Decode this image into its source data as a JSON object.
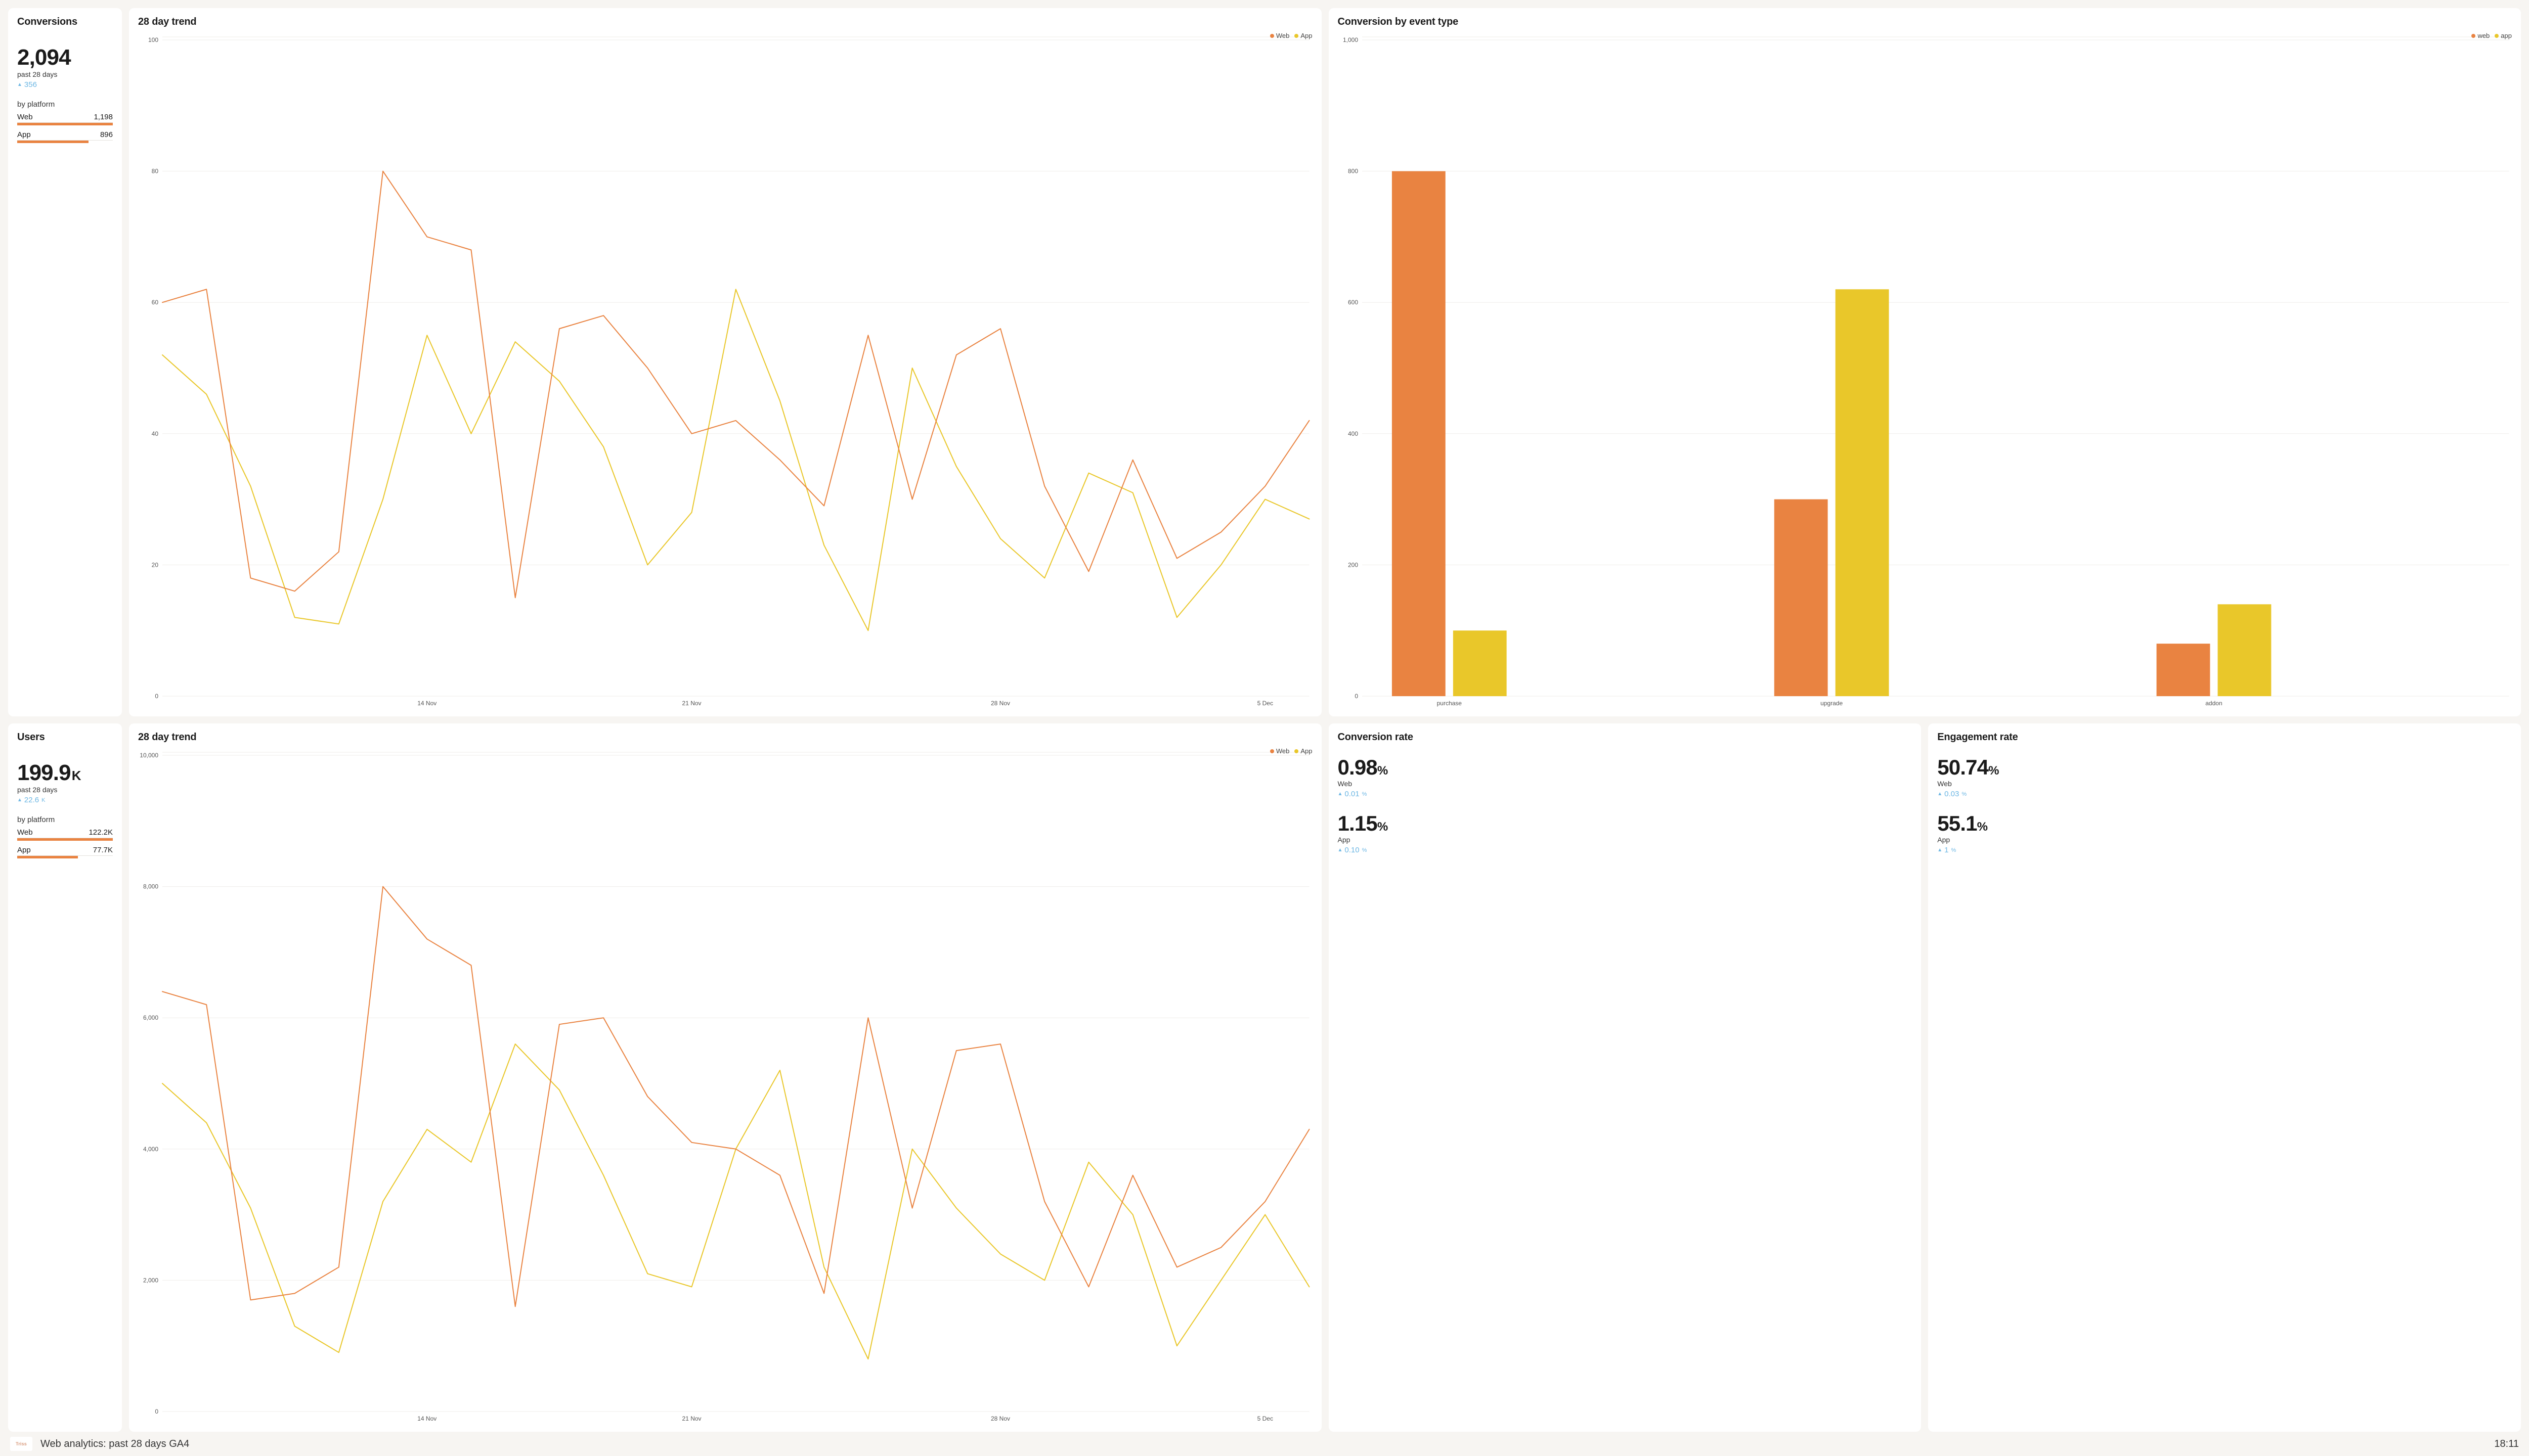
{
  "colors": {
    "web": "#e98341",
    "app": "#e9c72a",
    "delta": "#6db7e4",
    "grid": "#efedea",
    "axis_text": "#555555",
    "bg": "#f7f5f2",
    "card_bg": "#ffffff"
  },
  "conversions_card": {
    "title": "Conversions",
    "value": "2,094",
    "period": "past 28 days",
    "delta": "356",
    "section": "by platform",
    "web_label": "Web",
    "web_value": "1,198",
    "web_pct": 1.0,
    "app_label": "App",
    "app_value": "896",
    "app_pct": 0.748
  },
  "users_card": {
    "title": "Users",
    "value": "199.9",
    "unit": "K",
    "period": "past 28 days",
    "delta": "22.6",
    "delta_unit": "K",
    "section": "by platform",
    "web_label": "Web",
    "web_value": "122.2K",
    "web_pct": 1.0,
    "app_label": "App",
    "app_value": "77.7K",
    "app_pct": 0.636
  },
  "trend_conv": {
    "title": "28 day trend",
    "legend": {
      "web": "Web",
      "app": "App"
    },
    "x_labels": [
      "14 Nov",
      "21 Nov",
      "28 Nov",
      "5 Dec"
    ],
    "y_labels": [
      "0",
      "20",
      "40",
      "60",
      "80",
      "100"
    ],
    "y_max": 100,
    "line_width": 2,
    "web": [
      60,
      62,
      18,
      16,
      22,
      80,
      70,
      68,
      15,
      56,
      58,
      50,
      40,
      42,
      36,
      29,
      55,
      30,
      52,
      56,
      32,
      19,
      36,
      21,
      25,
      32,
      42
    ],
    "app": [
      52,
      46,
      32,
      12,
      11,
      30,
      55,
      40,
      54,
      48,
      38,
      20,
      28,
      62,
      45,
      23,
      10,
      50,
      35,
      24,
      18,
      34,
      31,
      12,
      20,
      30,
      27
    ]
  },
  "trend_users": {
    "title": "28 day trend",
    "legend": {
      "web": "Web",
      "app": "App"
    },
    "x_labels": [
      "14 Nov",
      "21 Nov",
      "28 Nov",
      "5 Dec"
    ],
    "y_labels": [
      "0",
      "2,000",
      "4,000",
      "6,000",
      "8,000",
      "10,000"
    ],
    "y_max": 10000,
    "line_width": 2,
    "web": [
      6400,
      6200,
      1700,
      1800,
      2200,
      8000,
      7200,
      6800,
      1600,
      5900,
      6000,
      4800,
      4100,
      4000,
      3600,
      1800,
      6000,
      3100,
      5500,
      5600,
      3200,
      1900,
      3600,
      2200,
      2500,
      3200,
      4300
    ],
    "app": [
      5000,
      4400,
      3100,
      1300,
      900,
      3200,
      4300,
      3800,
      5600,
      4900,
      3600,
      2100,
      1900,
      4000,
      5200,
      2200,
      800,
      4000,
      3100,
      2400,
      2000,
      3800,
      3000,
      1000,
      2000,
      3000,
      1900
    ]
  },
  "event_chart": {
    "title": "Conversion by event type",
    "legend": {
      "web": "web",
      "app": "app"
    },
    "y_labels": [
      "0",
      "200",
      "400",
      "600",
      "800",
      "1,000"
    ],
    "y_max": 1000,
    "categories": [
      "purchase",
      "upgrade",
      "addon"
    ],
    "web": [
      800,
      300,
      80
    ],
    "app": [
      100,
      620,
      140
    ],
    "bar_width": 0.12,
    "gap": 0.01
  },
  "conv_rate": {
    "title": "Conversion rate",
    "web_value": "0.98",
    "web_label": "Web",
    "web_delta": "0.01",
    "app_value": "1.15",
    "app_label": "App",
    "app_delta": "0.10"
  },
  "eng_rate": {
    "title": "Engagement rate",
    "web_value": "50.74",
    "web_label": "Web",
    "web_delta": "0.03",
    "app_value": "55.1",
    "app_label": "App",
    "app_delta": "1"
  },
  "footer": {
    "logo": "Triss",
    "title": "Web analytics: past 28 days GA4",
    "clock": "18:11"
  }
}
